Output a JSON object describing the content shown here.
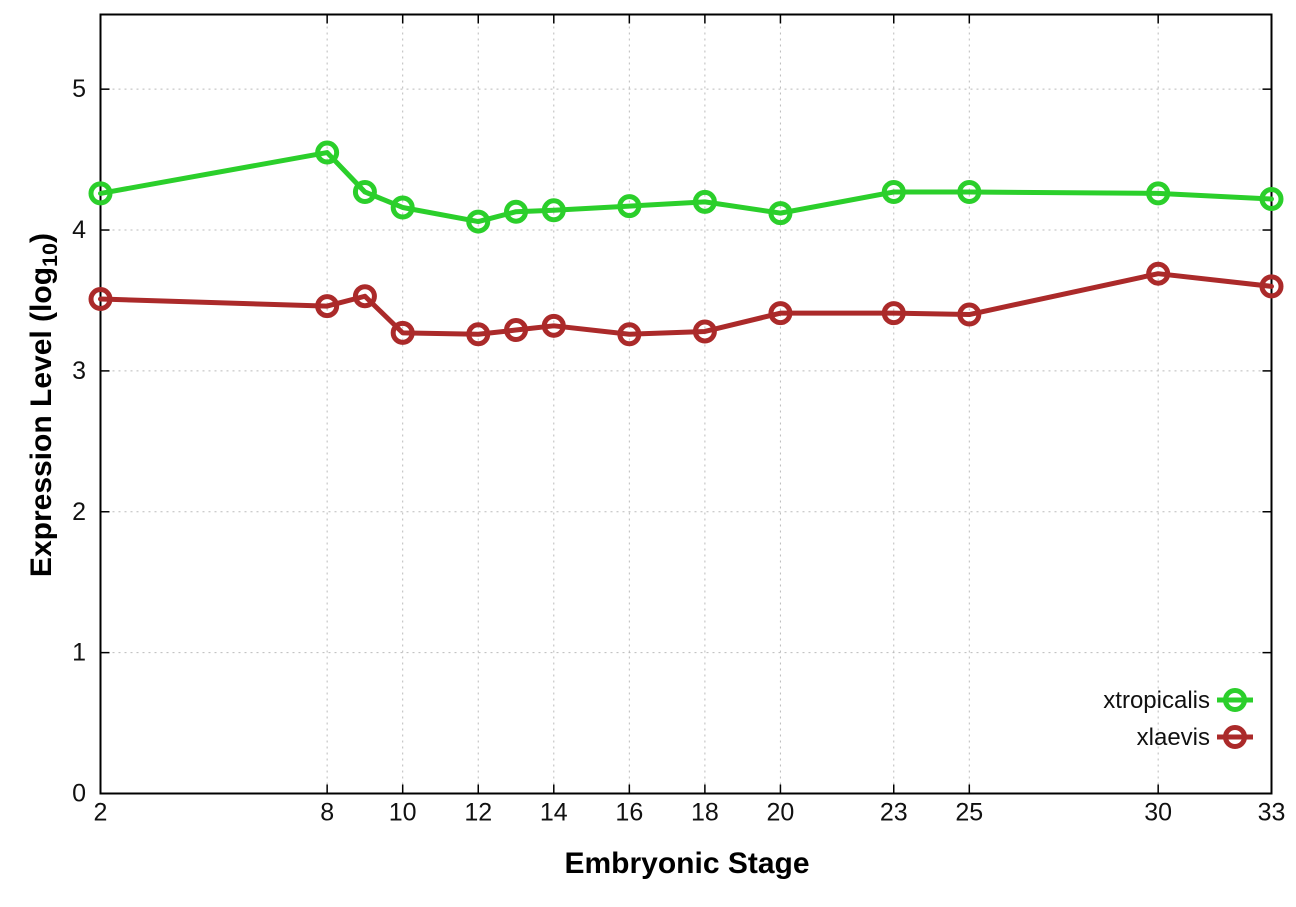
{
  "chart_data": {
    "type": "line",
    "title": "",
    "xlabel": "Embryonic Stage",
    "ylabel": "Expression Level (log10)",
    "ylabel_parts": {
      "main": "Expression Level (log",
      "sub": "10",
      "end": ")"
    },
    "x": [
      2,
      8,
      9,
      10,
      12,
      13,
      14,
      16,
      18,
      20,
      23,
      25,
      30,
      33
    ],
    "series": [
      {
        "name": "xtropicalis",
        "color": "#2bcf2b",
        "values": [
          4.26,
          4.55,
          4.27,
          4.16,
          4.06,
          4.13,
          4.14,
          4.17,
          4.2,
          4.12,
          4.27,
          4.27,
          4.26,
          4.22
        ]
      },
      {
        "name": "xlaevis",
        "color": "#ab2a2a",
        "values": [
          3.51,
          3.46,
          3.53,
          3.27,
          3.26,
          3.29,
          3.32,
          3.26,
          3.28,
          3.41,
          3.41,
          3.4,
          3.69,
          3.6
        ]
      }
    ],
    "x_ticks": [
      2,
      8,
      10,
      12,
      14,
      16,
      18,
      20,
      23,
      25,
      30,
      33
    ],
    "y_ticks": [
      0,
      1,
      2,
      3,
      4,
      5
    ],
    "xlim": [
      2,
      33
    ],
    "ylim": [
      0,
      5.53
    ],
    "grid": true,
    "grid_color": "#bbbbbb",
    "axis_color": "#000000",
    "tick_label_color": "#111111",
    "legend_position": "inside-bottom-right",
    "marker": "open-circle",
    "line_width": 5
  }
}
